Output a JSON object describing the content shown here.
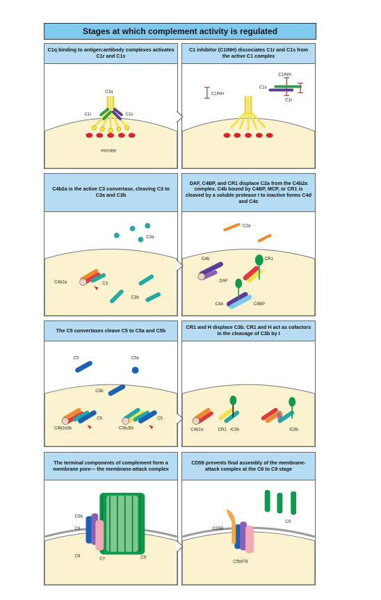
{
  "title": "Stages at which complement activity is regulated",
  "panels": {
    "p1": {
      "header": "C1q binding to antigen:antibody complexes activates C1r and C1s",
      "labels": {
        "c1q": "C1q",
        "c1r": "C1r",
        "c1s": "C1s",
        "microbe": "microbe"
      }
    },
    "p2": {
      "header": "C1 inhibitor (C1INH) dissociates C1r and C1s from the active C1 complex",
      "labels": {
        "c1inh_left": "C1INH",
        "c1inh_top": "C1INH",
        "c1s": "C1s",
        "c1r": "C1r"
      }
    },
    "p3": {
      "header": "C4b2a is the active C3 convertase, cleaving C3 to C3a and C3b",
      "labels": {
        "c3a": "C3a",
        "c4b2a": "C4b2a",
        "c3": "C3",
        "c3b": "C3b"
      }
    },
    "p4": {
      "header": "DAF, C4BP, and CR1 displace C2a from the C4b2a complex. C4b bound by C4BP, MCP, or CR1 is cleaved by a soluble protease I to inactive forms C4d and C4c",
      "labels": {
        "c2a": "C2a",
        "c4b_top": "C4b",
        "cr1": "CR1",
        "daf": "DAF",
        "c4b_bottom": "C4b",
        "c4bp": "C4BP"
      }
    },
    "p5": {
      "header": "The C5 convertases cleave C5 to C5a and C5b",
      "labels": {
        "c5_top": "C5",
        "c5a": "C5a",
        "c5b": "C5b",
        "c4b2a3b": "C4b2a3b",
        "c5_left": "C5",
        "c3b2bb": "C3b₂Bb",
        "c5_right": "C5"
      }
    },
    "p6": {
      "header": "CR1 and H displace C3b. CR1 and H act as cofactors in the cleavage of C3b by I",
      "labels": {
        "c4b2a": "C4b2a",
        "cr1": "CR1",
        "ic3b_left": "iC3b",
        "h": "H",
        "ic3b_right": "iC3b"
      }
    },
    "p7": {
      "header": "The terminal components of complement form a membrane pore— the membrane-attack complex",
      "labels": {
        "c5b": "C5b",
        "c6": "C6",
        "c8": "C8",
        "c7": "C7",
        "c9": "C9"
      }
    },
    "p8": {
      "header": "CD59 prevents final assembly of the membrane-attack complex at the C8 to C9 stage",
      "labels": {
        "c9": "C9",
        "cd59": "CD59",
        "c5b678": "C5b678"
      }
    }
  },
  "colors": {
    "header_dark": "#7fc8ee",
    "header_light": "#b5dcf2",
    "membrane": "#fbf3d0",
    "c1q": "#f1e24a",
    "antibody_red": "#d8242a",
    "c1r": "#2e9c4a",
    "c1s": "#5a3c98",
    "teal": "#23a9a3",
    "red": "#e2373b",
    "orange": "#f08a2a",
    "blue": "#1c62b3",
    "green": "#0e9a4e",
    "purple": "#8a5fb5"
  }
}
